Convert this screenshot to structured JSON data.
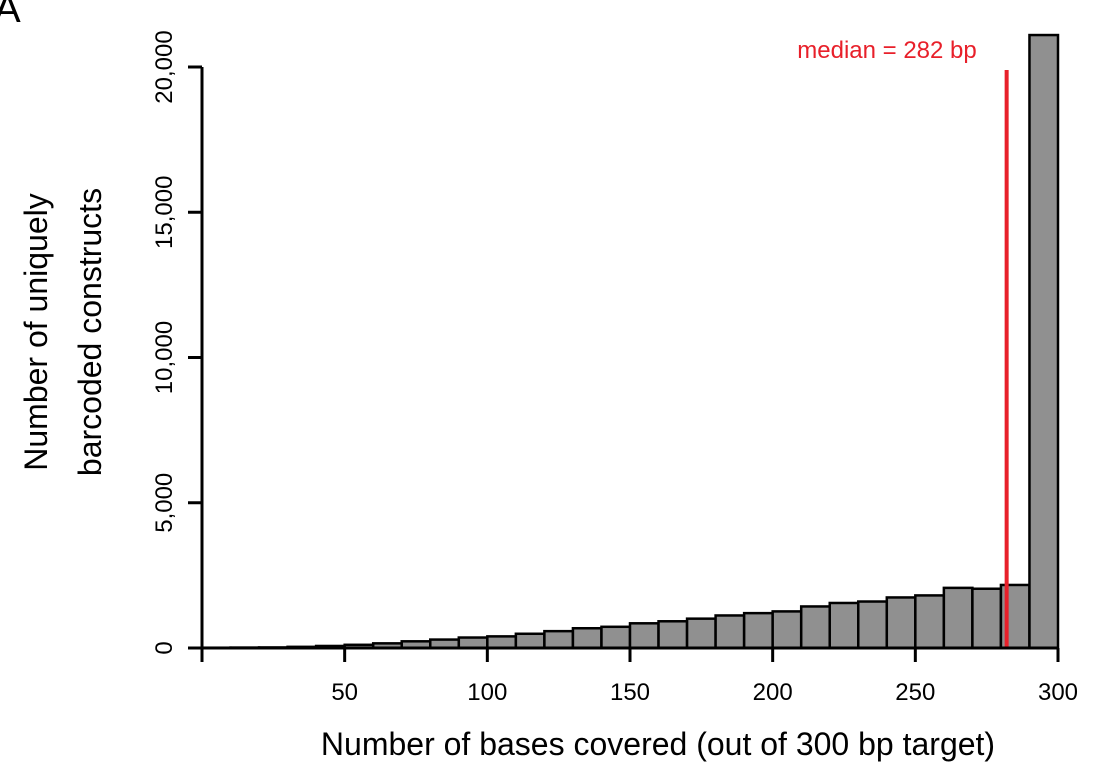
{
  "panel_letter": "A",
  "chart_data": {
    "type": "bar",
    "xlabel": "Number of bases covered (out of 300 bp target)",
    "ylabel_lines": [
      "Number of uniquely",
      "barcoded constructs"
    ],
    "xlim": [
      0,
      300
    ],
    "ylim": [
      0,
      20000
    ],
    "x_ticks": [
      50,
      100,
      150,
      200,
      250,
      300
    ],
    "y_ticks": [
      0,
      5000,
      10000,
      15000,
      20000
    ],
    "y_tick_labels": [
      "0",
      "5,000",
      "10,000",
      "15,000",
      "20,000"
    ],
    "bin_width": 10,
    "bins": [
      {
        "x0": 0,
        "x1": 10,
        "value": 10
      },
      {
        "x0": 10,
        "x1": 20,
        "value": 15
      },
      {
        "x0": 20,
        "x1": 30,
        "value": 20
      },
      {
        "x0": 30,
        "x1": 40,
        "value": 40
      },
      {
        "x0": 40,
        "x1": 50,
        "value": 70
      },
      {
        "x0": 50,
        "x1": 60,
        "value": 110
      },
      {
        "x0": 60,
        "x1": 70,
        "value": 160
      },
      {
        "x0": 70,
        "x1": 80,
        "value": 230
      },
      {
        "x0": 80,
        "x1": 90,
        "value": 290
      },
      {
        "x0": 90,
        "x1": 100,
        "value": 360
      },
      {
        "x0": 100,
        "x1": 110,
        "value": 400
      },
      {
        "x0": 110,
        "x1": 120,
        "value": 490
      },
      {
        "x0": 120,
        "x1": 130,
        "value": 580
      },
      {
        "x0": 130,
        "x1": 140,
        "value": 680
      },
      {
        "x0": 140,
        "x1": 150,
        "value": 730
      },
      {
        "x0": 150,
        "x1": 160,
        "value": 850
      },
      {
        "x0": 160,
        "x1": 170,
        "value": 920
      },
      {
        "x0": 170,
        "x1": 180,
        "value": 1010
      },
      {
        "x0": 180,
        "x1": 190,
        "value": 1120
      },
      {
        "x0": 190,
        "x1": 200,
        "value": 1200
      },
      {
        "x0": 200,
        "x1": 210,
        "value": 1260
      },
      {
        "x0": 210,
        "x1": 220,
        "value": 1430
      },
      {
        "x0": 220,
        "x1": 230,
        "value": 1550
      },
      {
        "x0": 230,
        "x1": 240,
        "value": 1600
      },
      {
        "x0": 240,
        "x1": 250,
        "value": 1740
      },
      {
        "x0": 250,
        "x1": 260,
        "value": 1810
      },
      {
        "x0": 260,
        "x1": 270,
        "value": 2070
      },
      {
        "x0": 270,
        "x1": 280,
        "value": 2040
      },
      {
        "x0": 280,
        "x1": 290,
        "value": 2170
      },
      {
        "x0": 290,
        "x1": 300,
        "value": 21100
      }
    ],
    "bar_color": "#909090",
    "bar_edge_color": "#000000",
    "median": {
      "x": 282,
      "label": "median = 282 bp",
      "color": "#e8202a"
    },
    "grid": false
  }
}
